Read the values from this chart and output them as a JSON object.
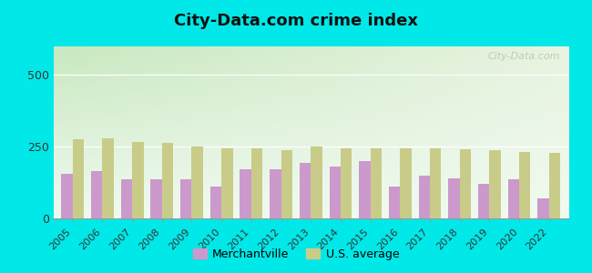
{
  "title": "City-Data.com crime index",
  "years": [
    2005,
    2006,
    2007,
    2008,
    2009,
    2010,
    2011,
    2012,
    2013,
    2014,
    2015,
    2016,
    2017,
    2018,
    2019,
    2020,
    2022
  ],
  "merchantville": [
    155,
    165,
    135,
    135,
    135,
    110,
    170,
    170,
    195,
    180,
    200,
    110,
    150,
    140,
    120,
    135,
    70
  ],
  "us_average": [
    275,
    278,
    268,
    262,
    252,
    245,
    245,
    238,
    250,
    246,
    246,
    246,
    246,
    241,
    238,
    232,
    228
  ],
  "merchantville_color": "#cc99cc",
  "us_average_color": "#c8cc88",
  "outer_bg": "#00e8e8",
  "bg_color_topleft": "#c8e8c0",
  "bg_color_topright": "#e8f4e0",
  "bg_color_bottom": "#e8f8e8",
  "ylim": [
    0,
    600
  ],
  "yticks": [
    0,
    250,
    500
  ],
  "bar_width": 0.38,
  "legend_merchantville": "Merchantville",
  "legend_us": "U.S. average",
  "watermark": "City-Data.com"
}
